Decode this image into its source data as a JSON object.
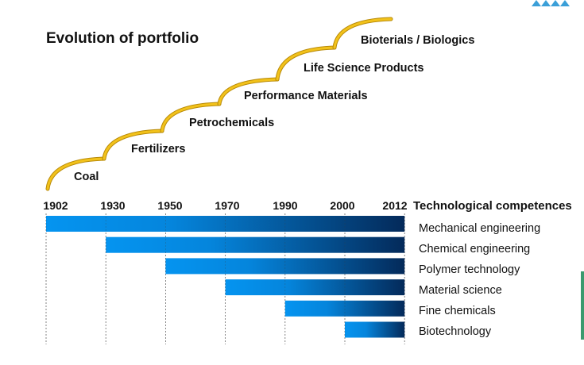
{
  "title": "Evolution of portfolio",
  "stages": [
    {
      "label": "Coal"
    },
    {
      "label": "Fertilizers"
    },
    {
      "label": "Petrochemicals"
    },
    {
      "label": "Performance Materials"
    },
    {
      "label": "Life Science Products"
    },
    {
      "label": "Bioterials / Biologics"
    }
  ],
  "competences_header": "Technological competences",
  "colors": {
    "arc": "#f2c21b",
    "bar_start": "#0594f0",
    "bar_end": "#042a5a",
    "grid": "#888888"
  },
  "chart_data": {
    "type": "bar",
    "orientation": "horizontal-timeline",
    "x_ticks": [
      "1902",
      "1930",
      "1950",
      "1970",
      "1990",
      "2000",
      "2012"
    ],
    "xlim": [
      "1902",
      "2012"
    ],
    "categories": [
      "Mechanical engineering",
      "Chemical engineering",
      "Polymer technology",
      "Material science",
      "Fine chemicals",
      "Biotechnology"
    ],
    "start": [
      "1902",
      "1930",
      "1950",
      "1970",
      "1990",
      "2000"
    ],
    "end": [
      "2012",
      "2012",
      "2012",
      "2012",
      "2012",
      "2012"
    ],
    "legend_title": "Technological competences",
    "grid": true
  }
}
